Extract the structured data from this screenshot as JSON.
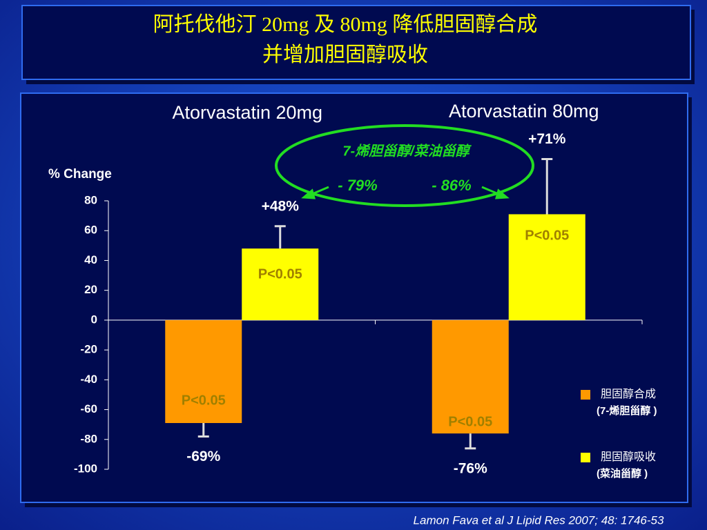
{
  "chart_data": {
    "type": "bar",
    "title": [
      "阿托伐他汀 20mg 及 80mg 降低胆固醇合成",
      "并增加胆固醇吸收"
    ],
    "y_label": "% Change",
    "categories": [
      "Atorvastatin 20mg",
      "Atorvastatin 80mg"
    ],
    "series": [
      {
        "name": "胆固醇合成",
        "sublabel": "(7-烯胆甾醇 )",
        "color": "#ff9900",
        "values": [
          -69,
          -76
        ],
        "errors": [
          9,
          10
        ],
        "value_labels": [
          "-69%",
          "-76%"
        ],
        "p_labels": [
          "P<0.05",
          "P<0.05"
        ]
      },
      {
        "name": "胆固醇吸收",
        "sublabel": "(菜油甾醇 )",
        "color": "#ffff00",
        "values": [
          48,
          71
        ],
        "errors": [
          15,
          37
        ],
        "value_labels": [
          "+48%",
          "+71%"
        ],
        "p_labels": [
          "P<0.05",
          "P<0.05"
        ]
      }
    ],
    "ylim": [
      -100,
      80
    ],
    "yticks": [
      -100,
      -80,
      -60,
      -40,
      -20,
      0,
      20,
      40,
      60,
      80
    ],
    "annotation": {
      "title": "7-烯胆甾醇/菜油甾醇",
      "labels": [
        "- 79%",
        "- 86%"
      ]
    },
    "legend": "lower right",
    "citation": "Lamon Fava et al J Lipid Res 2007; 48: 1746-53"
  }
}
